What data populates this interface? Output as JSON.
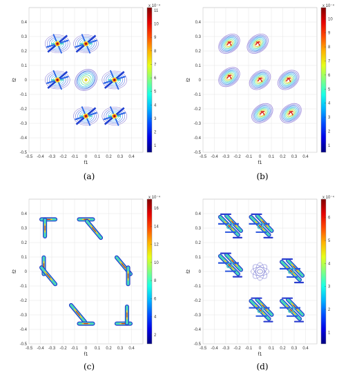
{
  "figure": {
    "panels": [
      {
        "id": "a",
        "caption": "(a)",
        "xlabel": "f1",
        "ylabel": "f2",
        "colorbar": {
          "ticks": [
            "1",
            "2",
            "3",
            "4",
            "5",
            "6",
            "7",
            "8",
            "9",
            "10",
            "11"
          ],
          "exponent": "x 10⁻⁴",
          "min": 0.5,
          "max": 11.2
        }
      },
      {
        "id": "b",
        "caption": "(b)",
        "xlabel": "f1",
        "ylabel": "f2",
        "colorbar": {
          "ticks": [
            "1",
            "2",
            "3",
            "4",
            "5",
            "6",
            "7",
            "8",
            "9",
            "10"
          ],
          "exponent": "x 10⁻⁴",
          "min": 0.5,
          "max": 10.8
        }
      },
      {
        "id": "c",
        "caption": "(c)",
        "xlabel": "f1",
        "ylabel": "f2",
        "colorbar": {
          "ticks": [
            "2",
            "4",
            "6",
            "8",
            "10",
            "12",
            "14",
            "16"
          ],
          "exponent": "x 10⁻⁴",
          "min": 1.0,
          "max": 17.0
        }
      },
      {
        "id": "d",
        "caption": "(d)",
        "xlabel": "f1",
        "ylabel": "f2",
        "colorbar": {
          "ticks": [
            "1",
            "2",
            "3",
            "4",
            "5",
            "6"
          ],
          "exponent": "x 10⁻⁴",
          "min": 0.5,
          "max": 6.8
        }
      }
    ],
    "xticks": [
      "-0.5",
      "-0.4",
      "-0.3",
      "-0.2",
      "-0.1",
      "0",
      "0.1",
      "0.2",
      "0.3",
      "0.4"
    ],
    "yticks": [
      "0.4",
      "0.3",
      "0.2",
      "0.1",
      "0",
      "-0.1",
      "-0.2",
      "-0.3",
      "-0.4",
      "-0.5"
    ]
  },
  "chart_data": [
    {
      "type": "heatmap",
      "panel": "a",
      "xlabel": "f1",
      "ylabel": "f2",
      "xlim": [
        -0.5,
        0.5
      ],
      "ylim": [
        -0.5,
        0.5
      ],
      "grid": true,
      "peaks": [
        {
          "x": -0.25,
          "y": 0.25,
          "shape": "star"
        },
        {
          "x": 0.0,
          "y": 0.25,
          "shape": "star"
        },
        {
          "x": -0.25,
          "y": 0.0,
          "shape": "star"
        },
        {
          "x": 0.0,
          "y": 0.0,
          "shape": "blob"
        },
        {
          "x": 0.25,
          "y": 0.0,
          "shape": "star"
        },
        {
          "x": 0.0,
          "y": -0.25,
          "shape": "star"
        },
        {
          "x": 0.25,
          "y": -0.25,
          "shape": "star"
        }
      ]
    },
    {
      "type": "heatmap",
      "panel": "b",
      "xlabel": "f1",
      "ylabel": "f2",
      "xlim": [
        -0.5,
        0.5
      ],
      "ylim": [
        -0.5,
        0.5
      ],
      "grid": true,
      "peaks": [
        {
          "x": -0.27,
          "y": 0.25,
          "shape": "ellipse"
        },
        {
          "x": -0.02,
          "y": 0.25,
          "shape": "ellipse"
        },
        {
          "x": -0.27,
          "y": 0.02,
          "shape": "ellipse"
        },
        {
          "x": 0.0,
          "y": 0.0,
          "shape": "ellipse"
        },
        {
          "x": 0.25,
          "y": 0.0,
          "shape": "ellipse"
        },
        {
          "x": 0.02,
          "y": -0.23,
          "shape": "ellipse"
        },
        {
          "x": 0.27,
          "y": -0.23,
          "shape": "ellipse"
        }
      ]
    },
    {
      "type": "heatmap",
      "panel": "c",
      "xlabel": "f1",
      "ylabel": "f2",
      "xlim": [
        -0.5,
        0.5
      ],
      "ylim": [
        -0.5,
        0.5
      ],
      "grid": true,
      "peaks": [
        {
          "x": -0.33,
          "y": 0.36,
          "shape": "hbar"
        },
        {
          "x": -0.36,
          "y": 0.3,
          "shape": "vbar"
        },
        {
          "x": 0.0,
          "y": 0.36,
          "shape": "hbar"
        },
        {
          "x": 0.07,
          "y": 0.29,
          "shape": "diag"
        },
        {
          "x": -0.37,
          "y": 0.04,
          "shape": "vbar"
        },
        {
          "x": -0.33,
          "y": -0.03,
          "shape": "diag"
        },
        {
          "x": 0.33,
          "y": 0.04,
          "shape": "diag"
        },
        {
          "x": 0.37,
          "y": -0.03,
          "shape": "vbar"
        },
        {
          "x": -0.07,
          "y": -0.29,
          "shape": "diag"
        },
        {
          "x": 0.0,
          "y": -0.36,
          "shape": "hbar"
        },
        {
          "x": 0.33,
          "y": -0.36,
          "shape": "hbar"
        },
        {
          "x": 0.36,
          "y": -0.3,
          "shape": "vbar"
        }
      ]
    },
    {
      "type": "heatmap",
      "panel": "d",
      "xlabel": "f1",
      "ylabel": "f2",
      "xlim": [
        -0.5,
        0.5
      ],
      "ylim": [
        -0.5,
        0.5
      ],
      "grid": true,
      "peaks": [
        {
          "x": -0.27,
          "y": 0.31,
          "shape": "cluster"
        },
        {
          "x": 0.0,
          "y": 0.31,
          "shape": "cluster"
        },
        {
          "x": -0.27,
          "y": 0.04,
          "shape": "cluster"
        },
        {
          "x": 0.27,
          "y": 0.0,
          "shape": "cluster"
        },
        {
          "x": 0.0,
          "y": -0.27,
          "shape": "cluster"
        },
        {
          "x": 0.27,
          "y": -0.27,
          "shape": "cluster"
        },
        {
          "x": 0.0,
          "y": 0.0,
          "shape": "flower"
        }
      ]
    }
  ]
}
